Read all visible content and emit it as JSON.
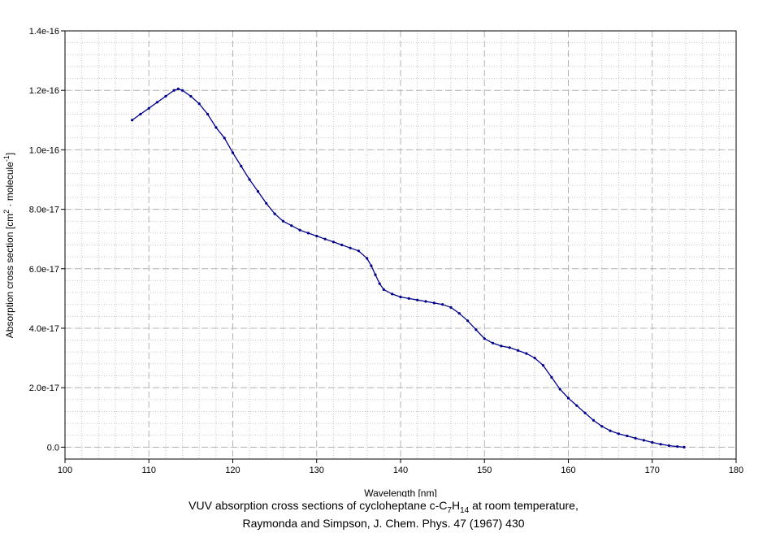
{
  "chart_data": {
    "type": "line",
    "title": "",
    "xlabel": "Wavelength [nm]",
    "ylabel_parts": {
      "before": "Absorption cross section [cm",
      "sup1": "2",
      "middle": " · molecule",
      "sup2": "-1",
      "after": "]"
    },
    "xlim": [
      100,
      180
    ],
    "ylim": [
      -4e-18,
      1.4e-16
    ],
    "x_ticks": [
      100,
      110,
      120,
      130,
      140,
      150,
      160,
      170,
      180
    ],
    "x_tick_labels": [
      "100",
      "110",
      "120",
      "130",
      "140",
      "150",
      "160",
      "170",
      "180"
    ],
    "y_ticks": [
      0,
      2e-17,
      4e-17,
      6e-17,
      8e-17,
      1e-16,
      1.2e-16,
      1.4e-16
    ],
    "y_tick_labels": [
      "0.0",
      "2.0e-17",
      "4.0e-17",
      "6.0e-17",
      "8.0e-17",
      "1.0e-16",
      "1.2e-16",
      "1.4e-16"
    ],
    "grid": true,
    "legend": "none",
    "series": [
      {
        "color": "#00008b",
        "x": [
          108,
          109,
          110,
          111,
          112,
          113,
          113.5,
          114,
          115,
          116,
          117,
          118,
          119,
          120,
          121,
          122,
          123,
          124,
          125,
          126,
          127,
          128,
          129,
          130,
          131,
          132,
          133,
          134,
          135,
          136,
          136.5,
          137,
          137.5,
          138,
          139,
          140,
          141,
          142,
          143,
          144,
          145,
          146,
          147,
          148,
          149,
          150,
          151,
          152,
          153,
          154,
          155,
          156,
          157,
          158,
          159,
          160,
          161,
          162,
          163,
          164,
          165,
          166,
          167,
          168,
          169,
          170,
          171,
          172,
          173,
          173.8
        ],
        "y": [
          1.1e-16,
          1.12e-16,
          1.14e-16,
          1.16e-16,
          1.18e-16,
          1.2e-16,
          1.205e-16,
          1.2e-16,
          1.18e-16,
          1.155e-16,
          1.12e-16,
          1.075e-16,
          1.04e-16,
          9.9e-17,
          9.45e-17,
          9e-17,
          8.6e-17,
          8.2e-17,
          7.85e-17,
          7.6e-17,
          7.45e-17,
          7.3e-17,
          7.2e-17,
          7.1e-17,
          7e-17,
          6.9e-17,
          6.8e-17,
          6.7e-17,
          6.6e-17,
          6.35e-17,
          6.1e-17,
          5.8e-17,
          5.5e-17,
          5.3e-17,
          5.15e-17,
          5.05e-17,
          5e-17,
          4.95e-17,
          4.9e-17,
          4.85e-17,
          4.8e-17,
          4.7e-17,
          4.5e-17,
          4.25e-17,
          3.95e-17,
          3.65e-17,
          3.5e-17,
          3.4e-17,
          3.35e-17,
          3.25e-17,
          3.15e-17,
          3e-17,
          2.75e-17,
          2.35e-17,
          1.95e-17,
          1.65e-17,
          1.4e-17,
          1.15e-17,
          9e-18,
          7e-18,
          5.5e-18,
          4.5e-18,
          3.8e-18,
          3e-18,
          2.3e-18,
          1.6e-18,
          1e-18,
          5e-19,
          2e-19,
          0.0
        ]
      }
    ]
  },
  "caption": {
    "line1_before": "VUV absorption cross sections of cycloheptane c-C",
    "sub1": "7",
    "line1_mid": "H",
    "sub2": "14",
    "line1_after": " at room temperature,",
    "line2": "Raymonda and Simpson, J. Chem. Phys. 47 (1967) 430"
  }
}
